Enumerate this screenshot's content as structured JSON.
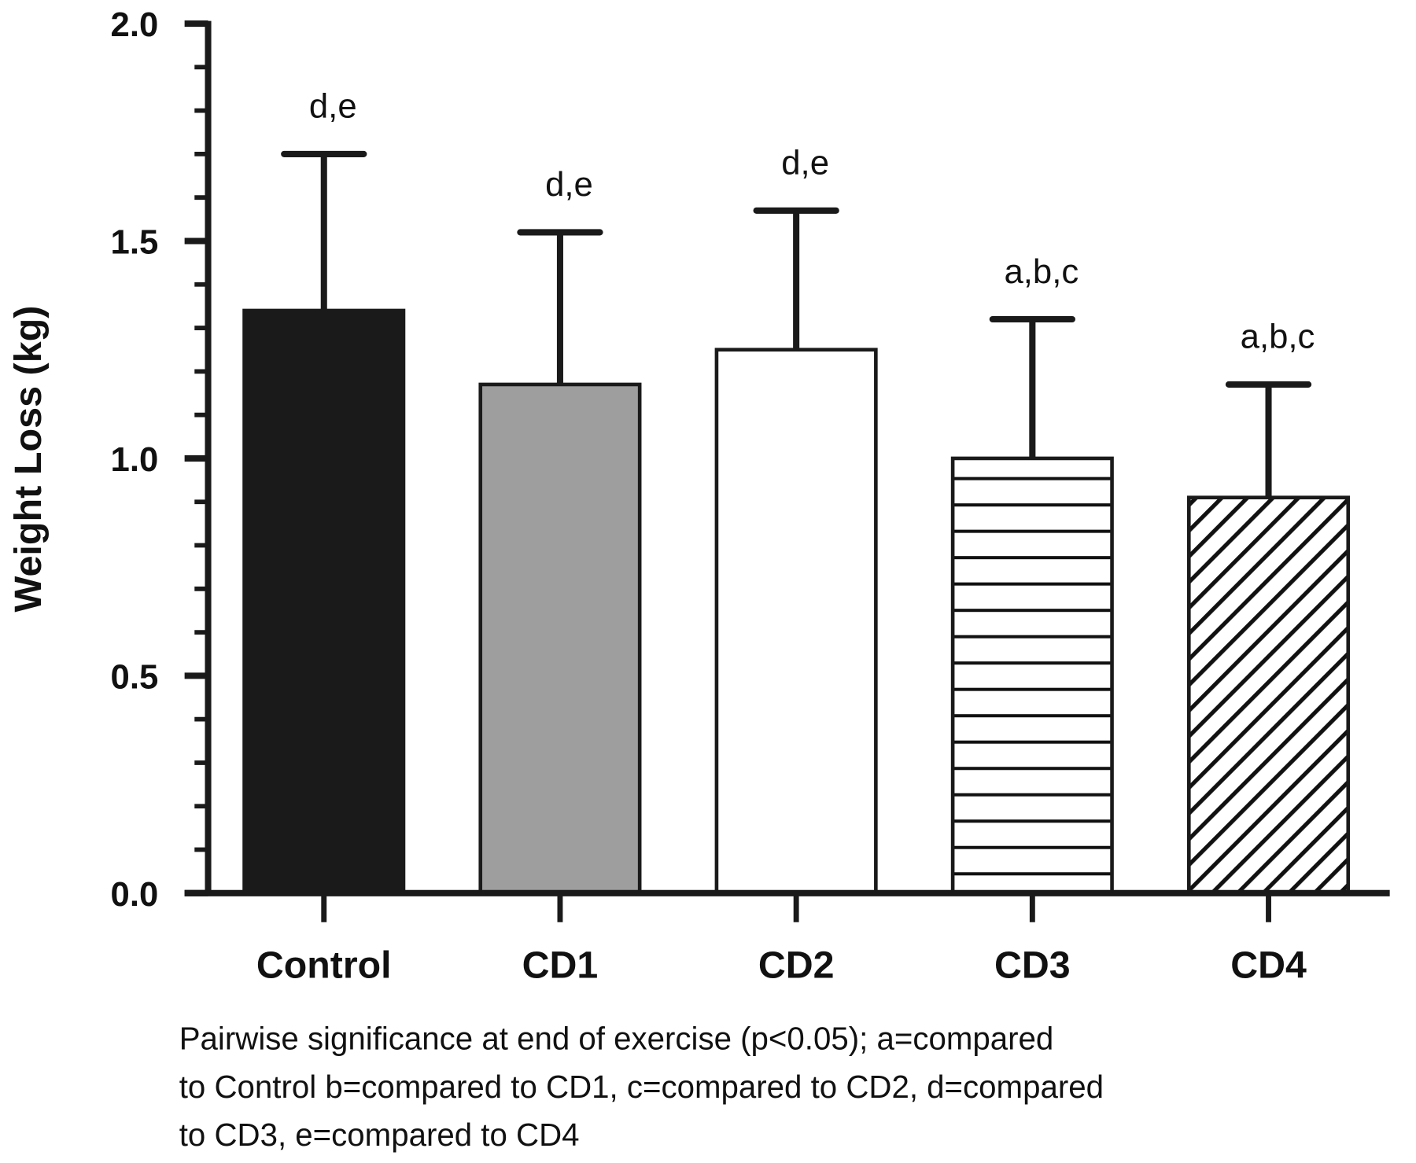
{
  "chart_data": {
    "type": "bar",
    "title": "",
    "xlabel": "",
    "ylabel": "Weight Loss (kg)",
    "ylim": [
      0,
      2.0
    ],
    "yticks": [
      "0.0",
      "0.5",
      "1.0",
      "1.5",
      "2.0"
    ],
    "categories": [
      "Control",
      "CD1",
      "CD2",
      "CD3",
      "CD4"
    ],
    "values": [
      1.34,
      1.17,
      1.25,
      1.0,
      0.91
    ],
    "error_upper": [
      1.7,
      1.52,
      1.57,
      1.32,
      1.17
    ],
    "annotations": [
      "d,e",
      "d,e",
      "d,e",
      "a,b,c",
      "a,b,c"
    ],
    "fills": [
      {
        "pattern": "solid",
        "color": "#1a1a1a"
      },
      {
        "pattern": "solid",
        "color": "#9e9e9e"
      },
      {
        "pattern": "solid",
        "color": "#ffffff"
      },
      {
        "pattern": "horizontal-lines",
        "color": "#ffffff"
      },
      {
        "pattern": "diagonal-hatch",
        "color": "#ffffff"
      }
    ],
    "grid": false,
    "note_lines": [
      "Pairwise significance at end of exercise (p<0.05); a=compared",
      "to Control b=compared to CD1, c=compared to CD2, d=compared",
      "to CD3, e=compared to CD4"
    ]
  }
}
